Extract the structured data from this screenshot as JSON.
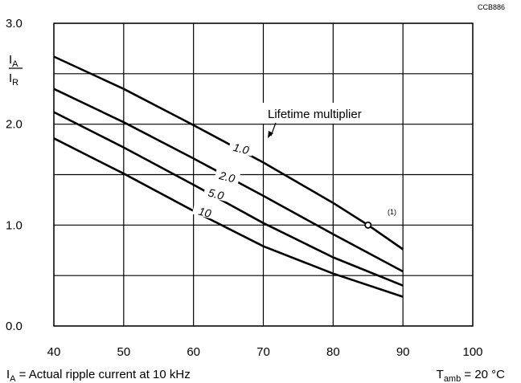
{
  "figure_code": "CCB886",
  "ylabel_numerator": "I",
  "ylabel_numerator_sub": "A",
  "ylabel_denominator": "I",
  "ylabel_denominator_sub": "R",
  "legend_title": "Lifetime multiplier",
  "note_marker": "(1)",
  "footnote_main": "I",
  "footnote_sub": "A",
  "footnote_rest": " = Actual ripple current at 10 kHz",
  "condition_main": "T",
  "condition_sub": "amb",
  "condition_rest": " = 20 °C",
  "chart_data": {
    "type": "line",
    "xlim": [
      40,
      100
    ],
    "ylim": [
      0,
      3.0
    ],
    "x_ticks": [
      "40",
      "50",
      "60",
      "70",
      "80",
      "90",
      "100"
    ],
    "y_ticks": [
      "0.0",
      "1.0",
      "2.0",
      "3.0"
    ],
    "grid": true,
    "series": [
      {
        "name": "1.0",
        "x": [
          40,
          50,
          60,
          70,
          80,
          85,
          90
        ],
        "y": [
          2.67,
          2.35,
          1.99,
          1.62,
          1.22,
          1.0,
          0.76
        ]
      },
      {
        "name": "2.0",
        "x": [
          40,
          50,
          60,
          70,
          80,
          90
        ],
        "y": [
          2.35,
          2.02,
          1.66,
          1.29,
          0.91,
          0.54
        ]
      },
      {
        "name": "5.0",
        "x": [
          40,
          50,
          60,
          70,
          80,
          90
        ],
        "y": [
          2.12,
          1.77,
          1.4,
          1.02,
          0.68,
          0.4
        ]
      },
      {
        "name": "10",
        "x": [
          40,
          50,
          60,
          70,
          80,
          90
        ],
        "y": [
          1.86,
          1.51,
          1.14,
          0.79,
          0.52,
          0.29
        ]
      }
    ],
    "marker": {
      "x": 85,
      "y": 1.0
    }
  }
}
